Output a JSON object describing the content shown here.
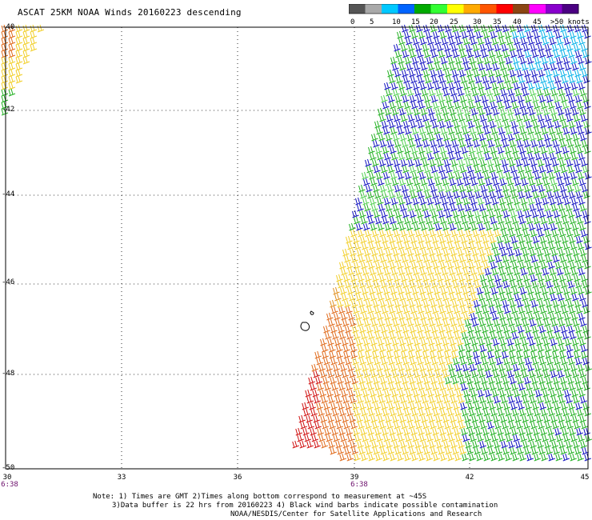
{
  "title": "ASCAT 25KM NOAA Winds 20160223 descending",
  "legend": {
    "labels": [
      "0",
      "5",
      "10",
      "15",
      "20",
      "25",
      "30",
      "35",
      "40",
      "45",
      ">50 knots"
    ],
    "colors": [
      "#555555",
      "#a9a9a9",
      "#00c8ff",
      "#0064ff",
      "#00aa00",
      "#33ff33",
      "#ffff00",
      "#ffaa00",
      "#ff5500",
      "#ff0000",
      "#8b4513",
      "#ff00ff",
      "#8800cc",
      "#4b0082"
    ]
  },
  "axes": {
    "lat_labels": [
      "-40",
      "-42",
      "-44",
      "-46",
      "-48",
      "-50"
    ],
    "lon_labels": [
      "30",
      "33",
      "36",
      "39",
      "42",
      "45"
    ],
    "time_labels": [
      "6:38",
      "6:38"
    ]
  },
  "notes": [
    "Note: 1) Times are GMT 2)Times along bottom correspond to measurement at ~45S",
    "3)Data buffer is 22 hrs from 20160223 4) Black wind barbs indicate possible contamination",
    "NOAA/NESDIS/Center for Satellite Applications and Research"
  ]
}
